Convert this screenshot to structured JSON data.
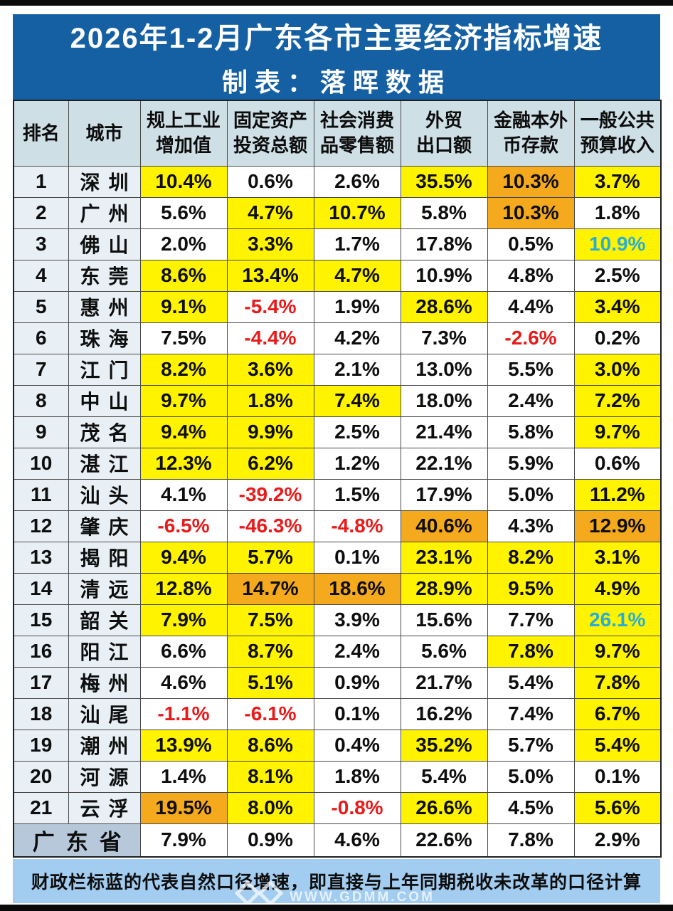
{
  "title": {
    "line1": "2026年1-2月广东各市主要经济指标增速",
    "line2": "制表：落晖数据"
  },
  "colors": {
    "title_blue": "#1560A2",
    "header_bg": "#CEDFE6",
    "label_col_bg": "#E8F0F5",
    "total_label_bg": "#B6C8D9",
    "footer_bg": "#A2CCF0",
    "highlight_yellow": "#FFF300",
    "highlight_orange": "#F5A91C",
    "negative_red": "#E81A1A",
    "natural_caliber_cyan": "#27AED8"
  },
  "table": {
    "headers": [
      {
        "lines": [
          "排名"
        ]
      },
      {
        "lines": [
          "城市"
        ]
      },
      {
        "lines": [
          "规上工业",
          "增加值"
        ]
      },
      {
        "lines": [
          "固定资产",
          "投资总额"
        ]
      },
      {
        "lines": [
          "社会消费",
          "品零售额"
        ]
      },
      {
        "lines": [
          "外贸",
          "出口额"
        ]
      },
      {
        "lines": [
          "金融本外",
          "币存款"
        ]
      },
      {
        "lines": [
          "一般公共",
          "预算收入"
        ]
      }
    ],
    "rows": [
      {
        "rank": "1",
        "city": "深圳",
        "cells": [
          {
            "v": "10.4%",
            "bg": "y"
          },
          {
            "v": "0.6%"
          },
          {
            "v": "2.6%"
          },
          {
            "v": "35.5%",
            "bg": "y"
          },
          {
            "v": "10.3%",
            "bg": "o"
          },
          {
            "v": "3.7%",
            "bg": "y"
          }
        ]
      },
      {
        "rank": "2",
        "city": "广州",
        "cells": [
          {
            "v": "5.6%"
          },
          {
            "v": "4.7%",
            "bg": "y"
          },
          {
            "v": "10.7%",
            "bg": "y"
          },
          {
            "v": "5.8%"
          },
          {
            "v": "10.3%",
            "bg": "o"
          },
          {
            "v": "1.8%"
          }
        ]
      },
      {
        "rank": "3",
        "city": "佛山",
        "cells": [
          {
            "v": "2.0%"
          },
          {
            "v": "3.3%",
            "bg": "y"
          },
          {
            "v": "1.7%"
          },
          {
            "v": "17.8%"
          },
          {
            "v": "0.5%"
          },
          {
            "v": "10.9%",
            "bg": "y",
            "fg": "c"
          }
        ]
      },
      {
        "rank": "4",
        "city": "东莞",
        "cells": [
          {
            "v": "8.6%",
            "bg": "y"
          },
          {
            "v": "13.4%",
            "bg": "y"
          },
          {
            "v": "4.7%",
            "bg": "y"
          },
          {
            "v": "10.9%"
          },
          {
            "v": "4.8%"
          },
          {
            "v": "2.5%"
          }
        ]
      },
      {
        "rank": "5",
        "city": "惠州",
        "cells": [
          {
            "v": "9.1%",
            "bg": "y"
          },
          {
            "v": "-5.4%",
            "fg": "r"
          },
          {
            "v": "1.9%"
          },
          {
            "v": "28.6%",
            "bg": "y"
          },
          {
            "v": "4.4%"
          },
          {
            "v": "3.4%",
            "bg": "y"
          }
        ]
      },
      {
        "rank": "6",
        "city": "珠海",
        "cells": [
          {
            "v": "7.5%"
          },
          {
            "v": "-4.4%",
            "fg": "r"
          },
          {
            "v": "4.2%"
          },
          {
            "v": "7.3%"
          },
          {
            "v": "-2.6%",
            "fg": "r"
          },
          {
            "v": "0.2%"
          }
        ]
      },
      {
        "rank": "7",
        "city": "江门",
        "cells": [
          {
            "v": "8.2%",
            "bg": "y"
          },
          {
            "v": "3.6%",
            "bg": "y"
          },
          {
            "v": "2.1%"
          },
          {
            "v": "13.0%"
          },
          {
            "v": "5.5%"
          },
          {
            "v": "3.0%",
            "bg": "y"
          }
        ]
      },
      {
        "rank": "8",
        "city": "中山",
        "cells": [
          {
            "v": "9.7%",
            "bg": "y"
          },
          {
            "v": "1.8%",
            "bg": "y"
          },
          {
            "v": "7.4%",
            "bg": "y"
          },
          {
            "v": "18.0%"
          },
          {
            "v": "2.4%"
          },
          {
            "v": "7.2%",
            "bg": "y"
          }
        ]
      },
      {
        "rank": "9",
        "city": "茂名",
        "cells": [
          {
            "v": "9.4%",
            "bg": "y"
          },
          {
            "v": "9.9%",
            "bg": "y"
          },
          {
            "v": "2.5%"
          },
          {
            "v": "21.4%"
          },
          {
            "v": "5.8%"
          },
          {
            "v": "9.7%",
            "bg": "y"
          }
        ]
      },
      {
        "rank": "10",
        "city": "湛江",
        "cells": [
          {
            "v": "12.3%",
            "bg": "y"
          },
          {
            "v": "6.2%",
            "bg": "y"
          },
          {
            "v": "1.2%"
          },
          {
            "v": "22.1%"
          },
          {
            "v": "5.9%"
          },
          {
            "v": "0.6%"
          }
        ]
      },
      {
        "rank": "11",
        "city": "汕头",
        "cells": [
          {
            "v": "4.1%"
          },
          {
            "v": "-39.2%",
            "fg": "r"
          },
          {
            "v": "1.5%"
          },
          {
            "v": "17.9%"
          },
          {
            "v": "5.0%"
          },
          {
            "v": "11.2%",
            "bg": "y"
          }
        ]
      },
      {
        "rank": "12",
        "city": "肇庆",
        "cells": [
          {
            "v": "-6.5%",
            "fg": "r"
          },
          {
            "v": "-46.3%",
            "fg": "r"
          },
          {
            "v": "-4.8%",
            "fg": "r"
          },
          {
            "v": "40.6%",
            "bg": "o"
          },
          {
            "v": "4.3%"
          },
          {
            "v": "12.9%",
            "bg": "o"
          }
        ]
      },
      {
        "rank": "13",
        "city": "揭阳",
        "cells": [
          {
            "v": "9.4%",
            "bg": "y"
          },
          {
            "v": "5.7%",
            "bg": "y"
          },
          {
            "v": "0.1%"
          },
          {
            "v": "23.1%",
            "bg": "y"
          },
          {
            "v": "8.2%",
            "bg": "y"
          },
          {
            "v": "3.1%",
            "bg": "y"
          }
        ]
      },
      {
        "rank": "14",
        "city": "清远",
        "cells": [
          {
            "v": "12.8%",
            "bg": "y"
          },
          {
            "v": "14.7%",
            "bg": "o"
          },
          {
            "v": "18.6%",
            "bg": "o"
          },
          {
            "v": "28.9%",
            "bg": "y"
          },
          {
            "v": "9.5%",
            "bg": "y"
          },
          {
            "v": "4.9%",
            "bg": "y"
          }
        ]
      },
      {
        "rank": "15",
        "city": "韶关",
        "cells": [
          {
            "v": "7.9%",
            "bg": "y"
          },
          {
            "v": "7.5%",
            "bg": "y"
          },
          {
            "v": "3.9%"
          },
          {
            "v": "15.6%"
          },
          {
            "v": "7.7%"
          },
          {
            "v": "26.1%",
            "bg": "y",
            "fg": "c"
          }
        ]
      },
      {
        "rank": "16",
        "city": "阳江",
        "cells": [
          {
            "v": "6.6%"
          },
          {
            "v": "8.7%",
            "bg": "y"
          },
          {
            "v": "2.4%"
          },
          {
            "v": "5.6%"
          },
          {
            "v": "7.8%",
            "bg": "y"
          },
          {
            "v": "9.7%",
            "bg": "y"
          }
        ]
      },
      {
        "rank": "17",
        "city": "梅州",
        "cells": [
          {
            "v": "4.6%"
          },
          {
            "v": "5.1%",
            "bg": "y"
          },
          {
            "v": "0.9%"
          },
          {
            "v": "21.7%"
          },
          {
            "v": "5.4%"
          },
          {
            "v": "7.8%",
            "bg": "y"
          }
        ]
      },
      {
        "rank": "18",
        "city": "汕尾",
        "cells": [
          {
            "v": "-1.1%",
            "fg": "r"
          },
          {
            "v": "-6.1%",
            "fg": "r"
          },
          {
            "v": "0.1%"
          },
          {
            "v": "16.2%"
          },
          {
            "v": "7.4%"
          },
          {
            "v": "6.7%",
            "bg": "y"
          }
        ]
      },
      {
        "rank": "19",
        "city": "潮州",
        "cells": [
          {
            "v": "13.9%",
            "bg": "y"
          },
          {
            "v": "8.6%",
            "bg": "y"
          },
          {
            "v": "0.4%"
          },
          {
            "v": "35.2%",
            "bg": "y"
          },
          {
            "v": "5.7%"
          },
          {
            "v": "5.4%",
            "bg": "y"
          }
        ]
      },
      {
        "rank": "20",
        "city": "河源",
        "cells": [
          {
            "v": "1.4%"
          },
          {
            "v": "8.1%",
            "bg": "y"
          },
          {
            "v": "1.8%"
          },
          {
            "v": "5.4%"
          },
          {
            "v": "5.0%"
          },
          {
            "v": "0.1%"
          }
        ]
      },
      {
        "rank": "21",
        "city": "云浮",
        "cells": [
          {
            "v": "19.5%",
            "bg": "o"
          },
          {
            "v": "8.0%",
            "bg": "y"
          },
          {
            "v": "-0.8%",
            "fg": "r"
          },
          {
            "v": "26.6%",
            "bg": "y"
          },
          {
            "v": "4.5%"
          },
          {
            "v": "5.6%",
            "bg": "y"
          }
        ]
      }
    ],
    "total_row": {
      "label": "广东省",
      "cells": [
        {
          "v": "7.9%"
        },
        {
          "v": "0.9%"
        },
        {
          "v": "4.6%"
        },
        {
          "v": "22.6%"
        },
        {
          "v": "7.8%"
        },
        {
          "v": "2.9%"
        }
      ]
    }
  },
  "footnote": "财政栏标蓝的代表自然口径增速，即直接与上年同期税收未改革的口径计算",
  "watermark": {
    "site": "WWW.GDMM.COM"
  },
  "chart_data": {
    "type": "table",
    "title": "2026年1-2月广东各市主要经济指标增速",
    "subtitle": "制表：落晖数据",
    "columns": [
      "排名",
      "城市",
      "规上工业增加值",
      "固定资产投资总额",
      "社会消费品零售额",
      "外贸出口额",
      "金融本外币存款",
      "一般公共预算收入"
    ],
    "rows": [
      [
        "1",
        "深圳",
        "10.4%",
        "0.6%",
        "2.6%",
        "35.5%",
        "10.3%",
        "3.7%"
      ],
      [
        "2",
        "广州",
        "5.6%",
        "4.7%",
        "10.7%",
        "5.8%",
        "10.3%",
        "1.8%"
      ],
      [
        "3",
        "佛山",
        "2.0%",
        "3.3%",
        "1.7%",
        "17.8%",
        "0.5%",
        "10.9%"
      ],
      [
        "4",
        "东莞",
        "8.6%",
        "13.4%",
        "4.7%",
        "10.9%",
        "4.8%",
        "2.5%"
      ],
      [
        "5",
        "惠州",
        "9.1%",
        "-5.4%",
        "1.9%",
        "28.6%",
        "4.4%",
        "3.4%"
      ],
      [
        "6",
        "珠海",
        "7.5%",
        "-4.4%",
        "4.2%",
        "7.3%",
        "-2.6%",
        "0.2%"
      ],
      [
        "7",
        "江门",
        "8.2%",
        "3.6%",
        "2.1%",
        "13.0%",
        "5.5%",
        "3.0%"
      ],
      [
        "8",
        "中山",
        "9.7%",
        "1.8%",
        "7.4%",
        "18.0%",
        "2.4%",
        "7.2%"
      ],
      [
        "9",
        "茂名",
        "9.4%",
        "9.9%",
        "2.5%",
        "21.4%",
        "5.8%",
        "9.7%"
      ],
      [
        "10",
        "湛江",
        "12.3%",
        "6.2%",
        "1.2%",
        "22.1%",
        "5.9%",
        "0.6%"
      ],
      [
        "11",
        "汕头",
        "4.1%",
        "-39.2%",
        "1.5%",
        "17.9%",
        "5.0%",
        "11.2%"
      ],
      [
        "12",
        "肇庆",
        "-6.5%",
        "-46.3%",
        "-4.8%",
        "40.6%",
        "4.3%",
        "12.9%"
      ],
      [
        "13",
        "揭阳",
        "9.4%",
        "5.7%",
        "0.1%",
        "23.1%",
        "8.2%",
        "3.1%"
      ],
      [
        "14",
        "清远",
        "12.8%",
        "14.7%",
        "18.6%",
        "28.9%",
        "9.5%",
        "4.9%"
      ],
      [
        "15",
        "韶关",
        "7.9%",
        "7.5%",
        "3.9%",
        "15.6%",
        "7.7%",
        "26.1%"
      ],
      [
        "16",
        "阳江",
        "6.6%",
        "8.7%",
        "2.4%",
        "5.6%",
        "7.8%",
        "9.7%"
      ],
      [
        "17",
        "梅州",
        "4.6%",
        "5.1%",
        "0.9%",
        "21.7%",
        "5.4%",
        "7.8%"
      ],
      [
        "18",
        "汕尾",
        "-1.1%",
        "-6.1%",
        "0.1%",
        "16.2%",
        "7.4%",
        "6.7%"
      ],
      [
        "19",
        "潮州",
        "13.9%",
        "8.6%",
        "0.4%",
        "35.2%",
        "5.7%",
        "5.4%"
      ],
      [
        "20",
        "河源",
        "1.4%",
        "8.1%",
        "1.8%",
        "5.4%",
        "5.0%",
        "0.1%"
      ],
      [
        "21",
        "云浮",
        "19.5%",
        "8.0%",
        "-0.8%",
        "26.6%",
        "4.5%",
        "5.6%"
      ],
      [
        "",
        "广东省",
        "7.9%",
        "0.9%",
        "4.6%",
        "22.6%",
        "7.8%",
        "2.9%"
      ]
    ],
    "notes": "财政栏标蓝的代表自然口径增速，即直接与上年同期税收未改革的口径计算"
  }
}
